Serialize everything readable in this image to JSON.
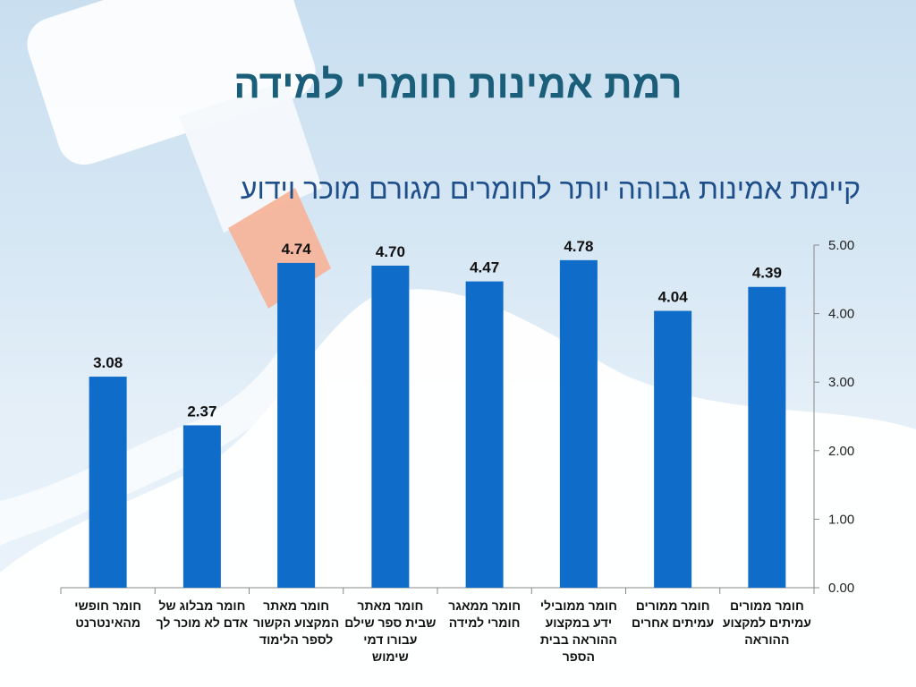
{
  "title": "רמת אמינות חומרי למידה",
  "subtitle": "קיימת אמינות גבוהה יותר לחומרים מגורם מוכר וידוע",
  "colors": {
    "bar": "#0f6cc9",
    "title": "#1b5e7a",
    "subtitle": "#1f4f8a"
  },
  "chart_data": {
    "type": "bar",
    "categories": [
      "חומר חופשי מהאינטרנט",
      "חומר מבלוג של אדם לא מוכר לך",
      "חומר מאתר המקצוע הקשור לספר הלימוד",
      "חומר מאתר שבית ספר שילם עבורו דמי שימוש",
      "חומר ממאגר חומרי למידה",
      "חומר ממובילי ידע במקצוע ההוראה בבית הספר",
      "חומר ממורים עמיתים אחרים",
      "חומר ממורים עמיתים למקצוע ההוראה"
    ],
    "values": [
      3.08,
      2.37,
      4.74,
      4.7,
      4.47,
      4.78,
      4.04,
      4.39
    ],
    "value_labels": [
      "3.08",
      "2.37",
      "4.74",
      "4.70",
      "4.47",
      "4.78",
      "4.04",
      "4.39"
    ],
    "yticks": [
      "0.00",
      "1.00",
      "2.00",
      "3.00",
      "4.00",
      "5.00"
    ],
    "ylim": [
      0,
      5
    ],
    "yaxis_side": "right",
    "grid": false,
    "legend": "none"
  }
}
